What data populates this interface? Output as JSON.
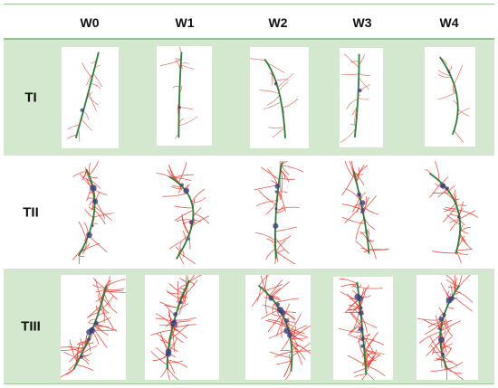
{
  "columns": [
    "W0",
    "W1",
    "W2",
    "W3",
    "W4"
  ],
  "rows": [
    {
      "label": "TI",
      "shaded": true,
      "density": "sparse"
    },
    {
      "label": "TII",
      "shaded": false,
      "density": "medium"
    },
    {
      "label": "TIII",
      "shaded": true,
      "density": "dense"
    }
  ],
  "colors": {
    "shade": "#d3e8cf",
    "rule": "#8fc48c",
    "stem": "#2f7d3a",
    "roots": "#e63b2e",
    "node": "#3a3f7a"
  }
}
